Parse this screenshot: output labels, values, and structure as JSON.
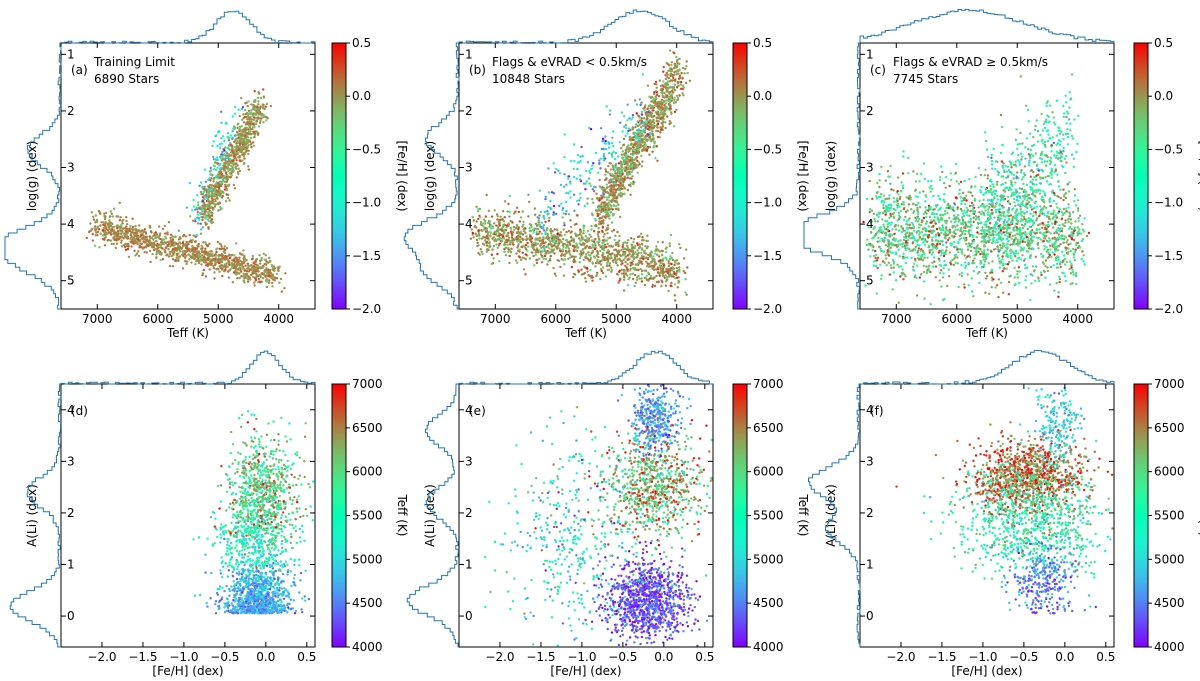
{
  "figure": {
    "panels": [
      "(a)",
      "(b)",
      "(c)",
      "(d)",
      "(e)",
      "(f)"
    ]
  },
  "chart_data": [
    {
      "id": "a",
      "type": "scatter",
      "label": "(a)",
      "title_lines": [
        "Training Limit",
        "6890 Stars"
      ],
      "xlabel": "Teff (K)",
      "ylabel": "log(g) (dex)",
      "xlim": [
        7600,
        3400
      ],
      "ylim": [
        5.5,
        0.8
      ],
      "xticks": [
        7000,
        6000,
        5000,
        4000
      ],
      "xtick_labels": [
        "7000",
        "6000",
        "5000",
        "4000"
      ],
      "yticks": [
        1,
        2,
        3,
        4,
        5
      ],
      "ytick_labels": [
        "1",
        "2",
        "3",
        "4",
        "5"
      ],
      "colorbar": {
        "label": "[Fe/H] (dex)",
        "vmin": -2.0,
        "vmax": 0.5,
        "ticks": [
          0.5,
          0.0,
          -0.5,
          -1.0,
          -1.5,
          -2.0
        ],
        "tick_labels": [
          "0.5",
          "0.0",
          "−0.5",
          "−1.0",
          "−1.5",
          "−2.0"
        ]
      },
      "n_points": 6890,
      "point_groups": [
        {
          "name": "main-sequence",
          "x": [
            7000,
            4050
          ],
          "y_center": [
            4.05,
            4.9
          ],
          "y_spread": 0.13,
          "c_mean": 0.05,
          "c_sd": 0.12,
          "weight": 0.55
        },
        {
          "name": "giant-branch",
          "x": [
            5250,
            4300
          ],
          "y_center": [
            3.85,
            1.9
          ],
          "y_spread": 0.15,
          "c_mean": 0.0,
          "c_sd": 0.14,
          "weight": 0.4
        },
        {
          "name": "metal-poor",
          "x": [
            5400,
            4700
          ],
          "y_center": [
            3.9,
            2.1
          ],
          "y_spread": 0.25,
          "c_mean": -1.1,
          "c_sd": 0.35,
          "weight": 0.05
        }
      ],
      "top_hist": {
        "peak_x": 4750,
        "peak_width": 400
      },
      "side_hist": {
        "peaks": [
          4.3,
          4.7,
          2.7
        ]
      }
    },
    {
      "id": "b",
      "type": "scatter",
      "label": "(b)",
      "title_lines": [
        "Flags & eVRAD < 0.5km/s",
        "10848 Stars"
      ],
      "xlabel": "Teff (K)",
      "ylabel": "log(g) (dex)",
      "xlim": [
        7600,
        3400
      ],
      "ylim": [
        5.5,
        0.8
      ],
      "xticks": [
        7000,
        6000,
        5000,
        4000
      ],
      "xtick_labels": [
        "7000",
        "6000",
        "5000",
        "4000"
      ],
      "yticks": [
        1,
        2,
        3,
        4,
        5
      ],
      "ytick_labels": [
        "1",
        "2",
        "3",
        "4",
        "5"
      ],
      "colorbar": {
        "label": "[Fe/H] (dex)",
        "vmin": -2.0,
        "vmax": 0.5,
        "ticks": [
          0.5,
          0.0,
          -0.5,
          -1.0,
          -1.5,
          -2.0
        ],
        "tick_labels": [
          "0.5",
          "0.0",
          "−0.5",
          "−1.0",
          "−1.5",
          "−2.0"
        ]
      },
      "n_points": 10848,
      "point_groups": [
        {
          "name": "main-sequence",
          "x": [
            7300,
            3950
          ],
          "y_center": [
            4.1,
            4.8
          ],
          "y_spread": 0.22,
          "c_mean": 0.0,
          "c_sd": 0.18,
          "weight": 0.5
        },
        {
          "name": "giant-branch",
          "x": [
            5300,
            3950
          ],
          "y_center": [
            3.9,
            1.3
          ],
          "y_spread": 0.2,
          "c_mean": 0.0,
          "c_sd": 0.18,
          "weight": 0.42
        },
        {
          "name": "metal-poor",
          "x": [
            6300,
            4500
          ],
          "y_center": [
            3.9,
            2.1
          ],
          "y_spread": 0.35,
          "c_mean": -1.2,
          "c_sd": 0.4,
          "weight": 0.08
        }
      ],
      "top_hist": {
        "peak_x": 4600,
        "peak_width": 650
      },
      "side_hist": {
        "peaks": [
          4.2,
          4.8,
          2.5
        ]
      }
    },
    {
      "id": "c",
      "type": "scatter",
      "label": "(c)",
      "title_lines": [
        "Flags & eVRAD ≥ 0.5km/s",
        "7745 Stars"
      ],
      "xlabel": "Teff (K)",
      "ylabel": "log(g) (dex)",
      "xlim": [
        7600,
        3400
      ],
      "ylim": [
        5.5,
        0.8
      ],
      "xticks": [
        7000,
        6000,
        5000,
        4000
      ],
      "xtick_labels": [
        "7000",
        "6000",
        "5000",
        "4000"
      ],
      "yticks": [
        1,
        2,
        3,
        4,
        5
      ],
      "ytick_labels": [
        "1",
        "2",
        "3",
        "4",
        "5"
      ],
      "colorbar": {
        "label": "[Fe/H] (dex)",
        "vmin": -2.0,
        "vmax": 0.5,
        "ticks": [
          0.5,
          0.0,
          -0.5,
          -1.0,
          -1.5,
          -2.0
        ],
        "tick_labels": [
          "0.5",
          "0.0",
          "−0.5",
          "−1.0",
          "−1.5",
          "−2.0"
        ]
      },
      "n_points": 7745,
      "point_groups": [
        {
          "name": "cloud",
          "x": [
            7400,
            4000
          ],
          "y_center": [
            4.1,
            4.2
          ],
          "y_spread": 0.45,
          "c_mean": -0.3,
          "c_sd": 0.35,
          "weight": 0.8
        },
        {
          "name": "giant-wedge",
          "x": [
            5600,
            4100
          ],
          "y_center": [
            3.8,
            2.4
          ],
          "y_spread": 0.45,
          "c_mean": -0.6,
          "c_sd": 0.4,
          "weight": 0.2
        }
      ],
      "top_hist": {
        "peak_x": 5800,
        "peak_width": 1300
      },
      "side_hist": {
        "peaks": [
          4.1,
          4.3
        ]
      }
    },
    {
      "id": "d",
      "type": "scatter",
      "label": "(d)",
      "title_lines": [],
      "xlabel": "[Fe/H] (dex)",
      "ylabel": "A(Li) (dex)",
      "xlim": [
        -2.5,
        0.6
      ],
      "ylim": [
        -0.6,
        4.5
      ],
      "xticks": [
        -2.0,
        -1.5,
        -1.0,
        -0.5,
        0.0,
        0.5
      ],
      "xtick_labels": [
        "−2.0",
        "−1.5",
        "−1.0",
        "−0.5",
        "0.0",
        "0.5"
      ],
      "yticks": [
        0,
        1,
        2,
        3,
        4
      ],
      "ytick_labels": [
        "0",
        "1",
        "2",
        "3",
        "4"
      ],
      "colorbar": {
        "label": "Teff (K)",
        "vmin": 4000,
        "vmax": 7000,
        "ticks": [
          7000,
          6500,
          6000,
          5500,
          5000,
          4500,
          4000
        ],
        "tick_labels": [
          "7000",
          "6500",
          "6000",
          "5500",
          "5000",
          "4500",
          "4000"
        ]
      },
      "n_points": 6890,
      "point_groups": [
        {
          "name": "cool-depleted",
          "x_mean": -0.1,
          "x_sd": 0.2,
          "y_mean": 0.35,
          "y_sd": 0.35,
          "c_mean": 4700,
          "c_sd": 250,
          "weight": 0.45
        },
        {
          "name": "warm-plateau",
          "x_mean": -0.05,
          "x_sd": 0.22,
          "y_mean": 2.3,
          "y_sd": 0.55,
          "c_mean": 6000,
          "c_sd": 450,
          "weight": 0.4
        },
        {
          "name": "intermediate",
          "x_mean": -0.15,
          "x_sd": 0.25,
          "y_mean": 1.3,
          "y_sd": 0.4,
          "c_mean": 5300,
          "c_sd": 300,
          "weight": 0.15
        }
      ],
      "top_hist": {
        "peak_x": 0.0,
        "peak_width": 0.25
      },
      "side_hist": {
        "peaks": [
          0.2,
          2.4
        ]
      }
    },
    {
      "id": "e",
      "type": "scatter",
      "label": "(e)",
      "title_lines": [],
      "xlabel": "[Fe/H] (dex)",
      "ylabel": "A(Li) (dex)",
      "xlim": [
        -2.5,
        0.6
      ],
      "ylim": [
        -0.6,
        4.5
      ],
      "xticks": [
        -2.0,
        -1.5,
        -1.0,
        -0.5,
        0.0,
        0.5
      ],
      "xtick_labels": [
        "−2.0",
        "−1.5",
        "−1.0",
        "−0.5",
        "0.0",
        "0.5"
      ],
      "yticks": [
        0,
        1,
        2,
        3,
        4
      ],
      "ytick_labels": [
        "0",
        "1",
        "2",
        "3",
        "4"
      ],
      "colorbar": {
        "label": "Teff (K)",
        "vmin": 4000,
        "vmax": 7000,
        "ticks": [
          7000,
          6500,
          6000,
          5500,
          5000,
          4500,
          4000
        ],
        "tick_labels": [
          "7000",
          "6500",
          "6000",
          "5500",
          "5000",
          "4500",
          "4000"
        ]
      },
      "n_points": 10848,
      "point_groups": [
        {
          "name": "cool-depleted",
          "x_mean": -0.2,
          "x_sd": 0.25,
          "y_mean": 0.3,
          "y_sd": 0.4,
          "c_mean": 4300,
          "c_sd": 250,
          "weight": 0.4
        },
        {
          "name": "giants-high",
          "x_mean": -0.1,
          "x_sd": 0.15,
          "y_mean": 3.8,
          "y_sd": 0.35,
          "c_mean": 4600,
          "c_sd": 250,
          "weight": 0.15
        },
        {
          "name": "warm-plateau",
          "x_mean": -0.15,
          "x_sd": 0.3,
          "y_mean": 2.5,
          "y_sd": 0.5,
          "c_mean": 6200,
          "c_sd": 500,
          "weight": 0.3
        },
        {
          "name": "metal-poor-tail",
          "x_mean": -1.1,
          "x_sd": 0.4,
          "y_mean": 1.5,
          "y_sd": 1.0,
          "c_mean": 5300,
          "c_sd": 600,
          "weight": 0.15
        }
      ],
      "top_hist": {
        "peak_x": -0.1,
        "peak_width": 0.35
      },
      "side_hist": {
        "peaks": [
          0.3,
          2.2,
          3.6
        ]
      }
    },
    {
      "id": "f",
      "type": "scatter",
      "label": "(f)",
      "title_lines": [],
      "xlabel": "[Fe/H] (dex)",
      "ylabel": "A(Li) (dex)",
      "xlim": [
        -2.5,
        0.6
      ],
      "ylim": [
        -0.6,
        4.5
      ],
      "xticks": [
        -2.0,
        -1.5,
        -1.0,
        -0.5,
        0.0,
        0.5
      ],
      "xtick_labels": [
        "−2.0",
        "−1.5",
        "−1.0",
        "−0.5",
        "0.0",
        "0.5"
      ],
      "yticks": [
        0,
        1,
        2,
        3,
        4
      ],
      "ytick_labels": [
        "0",
        "1",
        "2",
        "3",
        "4"
      ],
      "colorbar": {
        "label": "Teff (K)",
        "vmin": 4000,
        "vmax": 7000,
        "ticks": [
          7000,
          6500,
          6000,
          5500,
          5000,
          4500,
          4000
        ],
        "tick_labels": [
          "7000",
          "6500",
          "6000",
          "5500",
          "5000",
          "4500",
          "4000"
        ]
      },
      "n_points": 7745,
      "point_groups": [
        {
          "name": "hot-plateau",
          "x_mean": -0.45,
          "x_sd": 0.35,
          "y_mean": 2.7,
          "y_sd": 0.35,
          "c_mean": 6600,
          "c_sd": 350,
          "weight": 0.45
        },
        {
          "name": "mid-band",
          "x_mean": -0.4,
          "x_sd": 0.45,
          "y_mean": 1.8,
          "y_sd": 0.5,
          "c_mean": 5600,
          "c_sd": 400,
          "weight": 0.35
        },
        {
          "name": "cool-low",
          "x_mean": -0.25,
          "x_sd": 0.2,
          "y_mean": 0.7,
          "y_sd": 0.35,
          "c_mean": 4500,
          "c_sd": 250,
          "weight": 0.12
        },
        {
          "name": "giants-high",
          "x_mean": -0.1,
          "x_sd": 0.15,
          "y_mean": 3.7,
          "y_sd": 0.4,
          "c_mean": 5000,
          "c_sd": 300,
          "weight": 0.08
        }
      ],
      "top_hist": {
        "peak_x": -0.3,
        "peak_width": 0.5
      },
      "side_hist": {
        "peaks": [
          2.6,
          1.7
        ]
      }
    }
  ]
}
